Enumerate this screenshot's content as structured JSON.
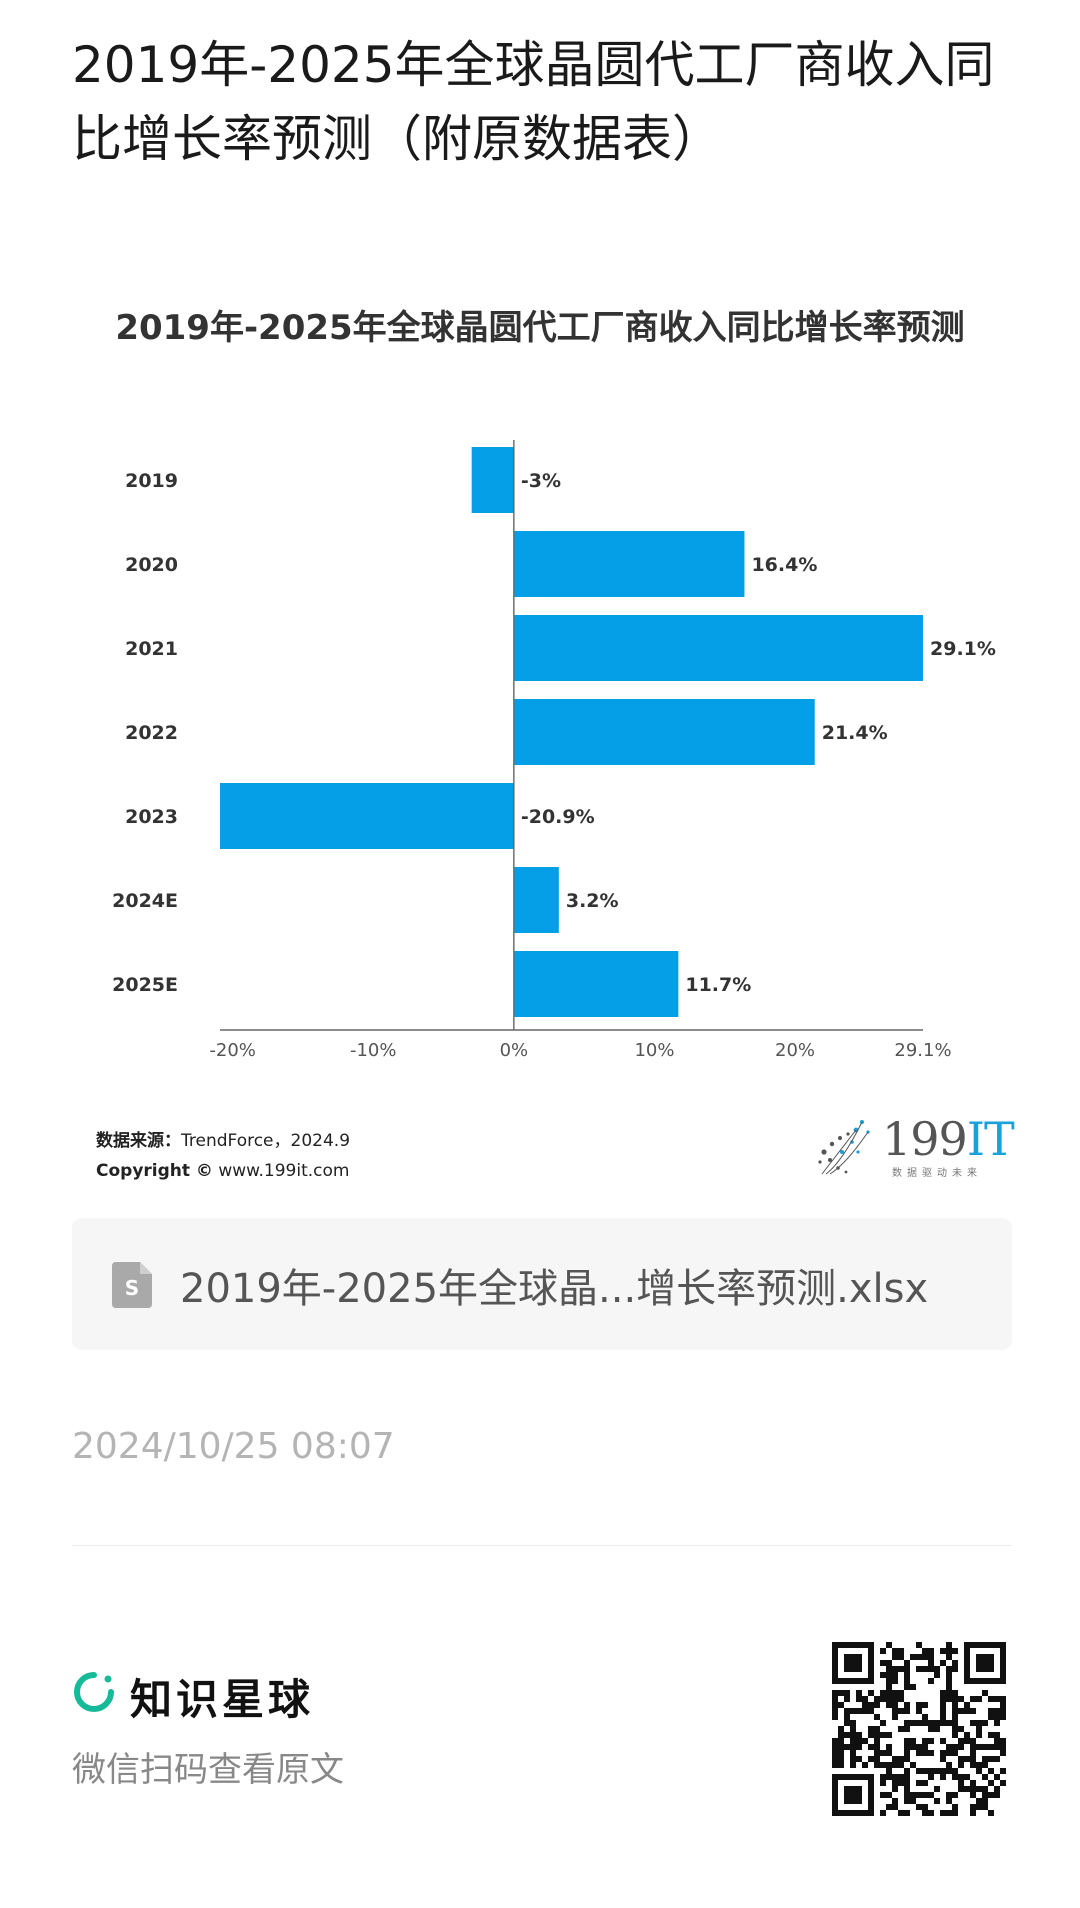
{
  "post": {
    "title": "2019年-2025年全球晶圆代工厂商收入同比增长率预测（附原数据表）"
  },
  "chart_data": {
    "type": "bar",
    "orientation": "horizontal",
    "title": "2019年-2025年全球晶圆代工厂商收入同比增长率预测",
    "categories": [
      "2019",
      "2020",
      "2021",
      "2022",
      "2023",
      "2024E",
      "2025E"
    ],
    "values": [
      -3,
      16.4,
      29.1,
      21.4,
      -20.9,
      3.2,
      11.7
    ],
    "value_labels": [
      "-3%",
      "16.4%",
      "29.1%",
      "21.4%",
      "-20.9%",
      "3.2%",
      "11.7%"
    ],
    "xlim": [
      -20.9,
      29.1
    ],
    "x_ticks": [
      -20,
      -10,
      0,
      10,
      20,
      29.1
    ],
    "x_tick_labels": [
      "-20%",
      "-10%",
      "0%",
      "10%",
      "20%",
      "29.1%"
    ],
    "bar_color": "#049fe6",
    "grid": false
  },
  "source": {
    "label": "数据来源：",
    "value": "TrendForce，2024.9",
    "copyright_label": "Copyright ©",
    "copyright_value": "www.199it.com"
  },
  "brand": {
    "name_prefix": "199",
    "name_suffix": "IT",
    "slogan": "数据驱动未来",
    "accent": "#1aa0dc"
  },
  "attachment": {
    "icon": "spreadsheet-file-icon",
    "filename": "2019年-2025年全球晶...增长率预测.xlsx"
  },
  "timestamp": "2024/10/25 08:07",
  "footer": {
    "app_name": "知识星球",
    "scan_hint": "微信扫码查看原文",
    "accent": "#16b998"
  }
}
